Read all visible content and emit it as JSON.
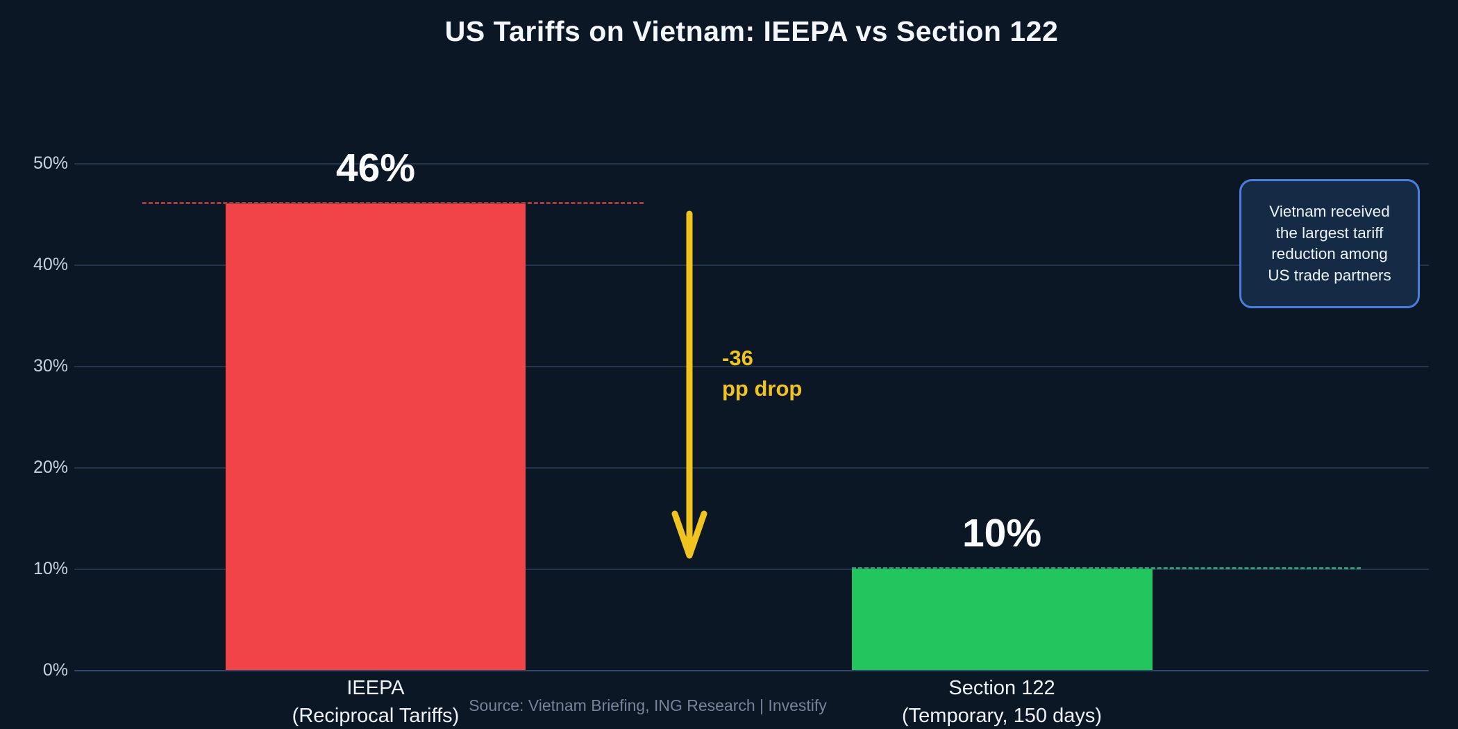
{
  "chart_data": {
    "type": "bar",
    "title": "US Tariffs on Vietnam: IEEPA vs Section 122",
    "categories": [
      {
        "label_line1": "IEEPA",
        "label_line2": "(Reciprocal Tariffs)"
      },
      {
        "label_line1": "Section 122",
        "label_line2": "(Temporary, 150 days)"
      }
    ],
    "values": [
      46,
      10
    ],
    "value_labels": [
      "46%",
      "10%"
    ],
    "bar_colors": [
      "#f04448",
      "#22c55e"
    ],
    "xlabel": "",
    "ylabel": "",
    "y_axis": {
      "ticks": [
        50,
        40,
        30,
        20,
        10,
        0
      ],
      "tick_labels": [
        "50%",
        "40%",
        "30%",
        "20%",
        "10%",
        "0%"
      ],
      "range": [
        0,
        50
      ]
    },
    "grid": true,
    "legend": "none",
    "reference_lines": [
      {
        "value": 46,
        "color": "#a23c44",
        "style": "dashed"
      },
      {
        "value": 10,
        "color": "#2f9e78",
        "style": "dashed"
      }
    ],
    "annotations": {
      "drop_line1": "-36",
      "drop_line2": "pp drop",
      "drop_color": "#f0c420",
      "callout_lines": [
        "Vietnam received",
        "the largest tariff",
        "reduction among",
        "US trade partners"
      ],
      "callout_border_color": "#4a7fdb"
    },
    "source": "Source: Vietnam Briefing, ING Research  |  Investify",
    "background_color": "#0c1726"
  }
}
